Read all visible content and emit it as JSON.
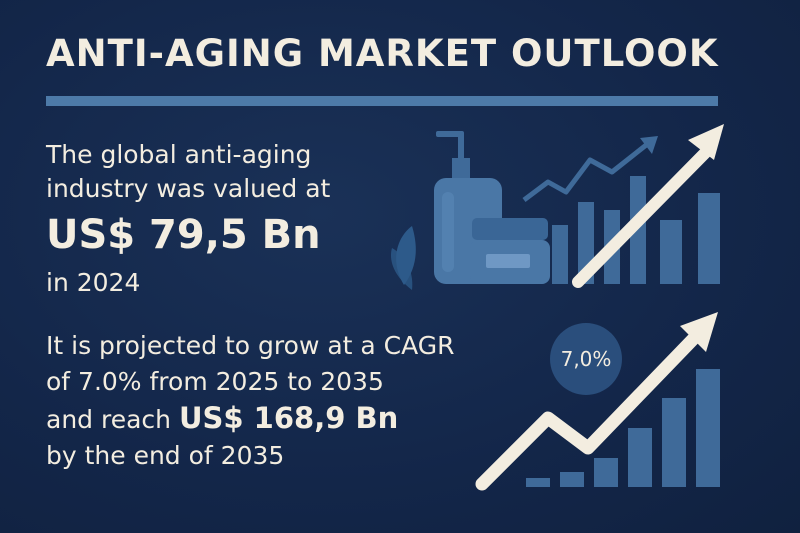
{
  "title": "ANTI-AGING MARKET OUTLOOK",
  "intro_line1": "The global anti-aging",
  "intro_line2": "industry was valued at",
  "value_2024": "US$ 79,5 Bn",
  "year_line": "in 2024",
  "projection_line1": "It is projected to grow at a CAGR",
  "projection_line2": "of 7.0% from 2025 to 2035",
  "projection_line3_prefix": "and reach ",
  "value_2035": "US$ 168,9 Bn",
  "projection_line4": "by the end of 2035",
  "cagr_badge": "7,0%",
  "colors": {
    "background": "#132649",
    "accent": "#4d7aa8",
    "text": "#f3ede0",
    "bars": "#3f6a99"
  },
  "icons": [
    "pump-bottle-icon",
    "cream-jar-icon",
    "leaf-icon",
    "growth-bar-chart-icon",
    "trend-arrow-icon"
  ]
}
